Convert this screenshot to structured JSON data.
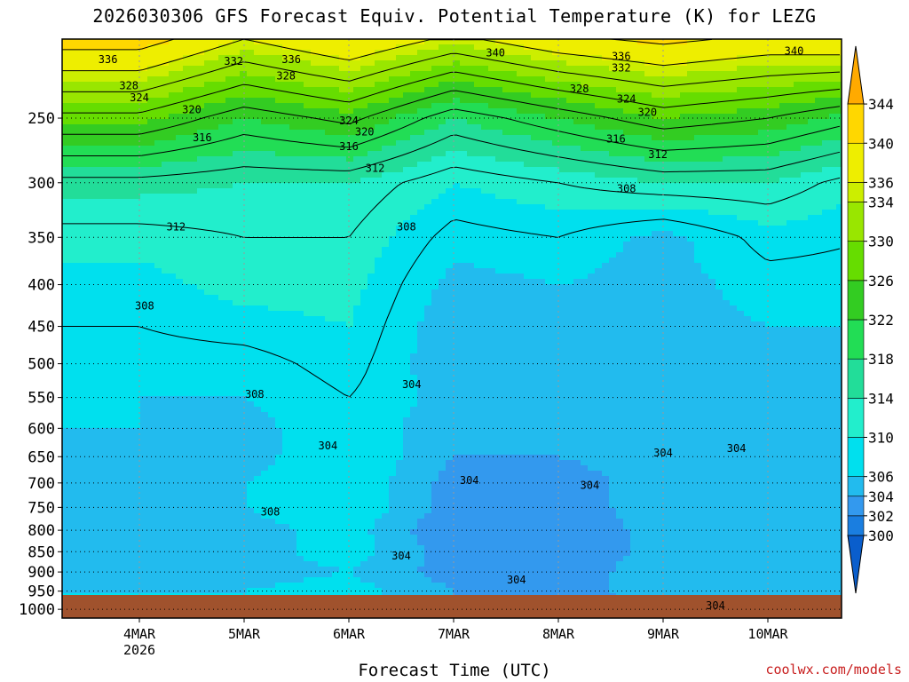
{
  "chart_data": {
    "type": "heatmap",
    "title": "2026030306 GFS Forecast Equiv. Potential Temperature (K) for LEZG",
    "xlabel": "Forecast Time (UTC)",
    "ylabel": "",
    "credit": "coolwx.com/models",
    "x_tick_labels": [
      "4MAR",
      "5MAR",
      "6MAR",
      "7MAR",
      "8MAR",
      "9MAR",
      "10MAR"
    ],
    "x_first_tick_sublabel": "2026",
    "y_scale": "log-pressure",
    "y_range_hpa": [
      200,
      1025
    ],
    "y_ticks": [
      250,
      300,
      350,
      400,
      450,
      500,
      550,
      600,
      650,
      700,
      750,
      800,
      850,
      900,
      950,
      1000
    ],
    "colorbar_ticks": [
      300,
      302,
      304,
      306,
      310,
      314,
      318,
      322,
      326,
      330,
      334,
      336,
      340,
      344
    ],
    "colorbar_range": [
      298,
      346
    ],
    "colors": {
      "lt300": "#0a5ecc",
      "300_302": "#1a7ee0",
      "302_304": "#3399ee",
      "304_306": "#22bbee",
      "306_310": "#00e0ee",
      "310_314": "#22eecc",
      "314_318": "#22dd99",
      "318_322": "#22dd55",
      "322_326": "#33cc22",
      "326_330": "#66dd00",
      "330_334": "#99e600",
      "334_336": "#ccee00",
      "336_340": "#eeee00",
      "340_344": "#ffd700",
      "gt344": "#ffaa00",
      "ground": "#a0522d"
    },
    "profiles": [
      {
        "day": 0.0,
        "levels_hpa": [
          200,
          250,
          300,
          350,
          400,
          450,
          500,
          550,
          600,
          650,
          700,
          750,
          800,
          850,
          900,
          950,
          1000
        ],
        "theta_e_K": [
          342,
          327,
          315,
          311,
          309,
          308,
          307,
          306,
          306,
          305,
          305,
          305,
          304,
          305,
          305,
          306,
          306
        ]
      },
      {
        "day": 1.0,
        "levels_hpa": [
          200,
          250,
          300,
          350,
          400,
          450,
          500,
          550,
          600,
          650,
          700,
          750,
          800,
          850,
          900,
          950,
          1000
        ],
        "theta_e_K": [
          336,
          322,
          314,
          312,
          311,
          309,
          307,
          306,
          305,
          305,
          306,
          306,
          305,
          305,
          305,
          306,
          306
        ]
      },
      {
        "day": 2.0,
        "levels_hpa": [
          200,
          250,
          300,
          350,
          400,
          450,
          500,
          550,
          600,
          650,
          700,
          750,
          800,
          850,
          900,
          950,
          1000
        ],
        "theta_e_K": [
          340,
          325,
          314,
          312,
          311,
          310,
          309,
          308,
          308,
          308,
          308,
          308,
          307,
          307,
          306,
          307,
          307
        ]
      },
      {
        "day": 3.0,
        "levels_hpa": [
          200,
          250,
          300,
          350,
          400,
          450,
          500,
          550,
          600,
          650,
          700,
          750,
          800,
          850,
          900,
          950,
          1000
        ],
        "theta_e_K": [
          335,
          318,
          310,
          307,
          305,
          304,
          304,
          305,
          304,
          304,
          303,
          303,
          302,
          303,
          303,
          304,
          304
        ]
      },
      {
        "day": 4.0,
        "levels_hpa": [
          200,
          250,
          300,
          350,
          400,
          450,
          500,
          550,
          600,
          650,
          700,
          750,
          800,
          850,
          900,
          950,
          1000
        ],
        "theta_e_K": [
          339,
          322,
          312,
          308,
          306,
          305,
          304,
          304,
          304,
          304,
          303,
          303,
          302,
          302,
          303,
          303,
          302
        ]
      },
      {
        "day": 5.0,
        "levels_hpa": [
          200,
          250,
          300,
          350,
          400,
          450,
          500,
          550,
          600,
          650,
          700,
          750,
          800,
          850,
          900,
          950,
          1000
        ],
        "theta_e_K": [
          341,
          326,
          314,
          305,
          305,
          305,
          305,
          305,
          305,
          305,
          305,
          305,
          305,
          305,
          305,
          305,
          305
        ]
      },
      {
        "day": 6.0,
        "levels_hpa": [
          200,
          250,
          300,
          350,
          400,
          450,
          500,
          550,
          600,
          650,
          700,
          750,
          800,
          850,
          900,
          950,
          1000
        ],
        "theta_e_K": [
          339,
          324,
          314,
          309,
          307,
          306,
          305,
          305,
          306,
          305,
          305,
          305,
          305,
          304,
          304,
          305,
          305
        ]
      },
      {
        "day": 7.0,
        "levels_hpa": [
          200,
          250,
          300,
          350,
          400,
          450,
          500,
          550,
          600,
          650,
          700,
          750,
          800,
          850,
          900,
          950,
          1000
        ],
        "theta_e_K": [
          340,
          320,
          310,
          308,
          307,
          306,
          306,
          306,
          306,
          305,
          305,
          305,
          305,
          304,
          304,
          305,
          305
        ]
      },
      {
        "day": 7.75,
        "levels_hpa": [
          200,
          250,
          300,
          350,
          400,
          450,
          500,
          550,
          600,
          650,
          700,
          750,
          800,
          850,
          900,
          950,
          1000
        ],
        "theta_e_K": [
          340,
          320,
          310,
          308,
          306,
          306,
          306,
          306,
          306,
          305,
          305,
          305,
          305,
          304,
          304,
          305,
          305
        ]
      }
    ],
    "contour_labels": [
      {
        "text": "340",
        "day": 3.4,
        "hpa": 208
      },
      {
        "text": "336",
        "day": -0.3,
        "hpa": 212
      },
      {
        "text": "332",
        "day": 0.9,
        "hpa": 213
      },
      {
        "text": "336",
        "day": 1.45,
        "hpa": 212
      },
      {
        "text": "328",
        "day": 1.4,
        "hpa": 222
      },
      {
        "text": "328",
        "day": -0.1,
        "hpa": 228
      },
      {
        "text": "324",
        "day": 0.0,
        "hpa": 236
      },
      {
        "text": "320",
        "day": 0.5,
        "hpa": 244
      },
      {
        "text": "316",
        "day": 0.6,
        "hpa": 264
      },
      {
        "text": "324",
        "day": 2.0,
        "hpa": 252
      },
      {
        "text": "320",
        "day": 2.15,
        "hpa": 260
      },
      {
        "text": "316",
        "day": 2.0,
        "hpa": 271
      },
      {
        "text": "312",
        "day": 2.25,
        "hpa": 288
      },
      {
        "text": "336",
        "day": 4.6,
        "hpa": 210
      },
      {
        "text": "332",
        "day": 4.6,
        "hpa": 217
      },
      {
        "text": "328",
        "day": 4.2,
        "hpa": 230
      },
      {
        "text": "324",
        "day": 4.65,
        "hpa": 237
      },
      {
        "text": "320",
        "day": 4.85,
        "hpa": 246
      },
      {
        "text": "316",
        "day": 4.55,
        "hpa": 265
      },
      {
        "text": "312",
        "day": 4.95,
        "hpa": 277
      },
      {
        "text": "308",
        "day": 4.65,
        "hpa": 305
      },
      {
        "text": "340",
        "day": 6.25,
        "hpa": 207
      },
      {
        "text": "336",
        "day": 6.85,
        "hpa": 215
      },
      {
        "text": "332",
        "day": 6.85,
        "hpa": 223
      },
      {
        "text": "328",
        "day": 6.85,
        "hpa": 231
      },
      {
        "text": "324",
        "day": 6.85,
        "hpa": 239
      },
      {
        "text": "320",
        "day": 6.85,
        "hpa": 248
      },
      {
        "text": "316",
        "day": 6.95,
        "hpa": 258
      },
      {
        "text": "312",
        "day": 7.1,
        "hpa": 269
      },
      {
        "text": "308",
        "day": 7.1,
        "hpa": 288
      },
      {
        "text": "308",
        "day": 6.8,
        "hpa": 325
      },
      {
        "text": "312",
        "day": 0.35,
        "hpa": 340
      },
      {
        "text": "308",
        "day": 2.55,
        "hpa": 340
      },
      {
        "text": "308",
        "day": 0.05,
        "hpa": 425
      },
      {
        "text": "308",
        "day": 1.1,
        "hpa": 545
      },
      {
        "text": "304",
        "day": 2.6,
        "hpa": 530
      },
      {
        "text": "304",
        "day": 1.8,
        "hpa": 630
      },
      {
        "text": "308",
        "day": 1.25,
        "hpa": 760
      },
      {
        "text": "304",
        "day": 2.5,
        "hpa": 860
      },
      {
        "text": "304",
        "day": 3.15,
        "hpa": 695
      },
      {
        "text": "304",
        "day": 3.6,
        "hpa": 920
      },
      {
        "text": "304",
        "day": 4.3,
        "hpa": 705
      },
      {
        "text": "304",
        "day": 5.0,
        "hpa": 643
      },
      {
        "text": "304",
        "day": 5.7,
        "hpa": 635
      },
      {
        "text": "304",
        "day": 7.5,
        "hpa": 800
      },
      {
        "text": "304",
        "day": 5.5,
        "hpa": 990
      }
    ]
  }
}
